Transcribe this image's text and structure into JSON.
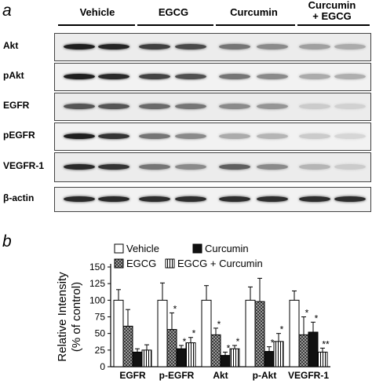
{
  "panel_a": {
    "letter": "a",
    "groups": [
      "Vehicle",
      "EGCG",
      "Curcumin",
      "Curcumin\n+ EGCG"
    ],
    "rows": [
      {
        "label": "Akt",
        "intensity": [
          0.95,
          0.92,
          0.8,
          0.75,
          0.55,
          0.45,
          0.35,
          0.3
        ]
      },
      {
        "label": "pAkt",
        "intensity": [
          0.95,
          0.9,
          0.78,
          0.72,
          0.55,
          0.45,
          0.3,
          0.28
        ]
      },
      {
        "label": "EGFR",
        "intensity": [
          0.7,
          0.7,
          0.6,
          0.55,
          0.45,
          0.4,
          0.15,
          0.12
        ]
      },
      {
        "label": "pEGFR",
        "intensity": [
          0.95,
          0.85,
          0.55,
          0.45,
          0.3,
          0.25,
          0.15,
          0.1
        ]
      },
      {
        "label": "VEGFR-1",
        "intensity": [
          0.9,
          0.85,
          0.55,
          0.45,
          0.65,
          0.45,
          0.25,
          0.15
        ]
      },
      {
        "label": "β-actin",
        "intensity": [
          0.9,
          0.9,
          0.88,
          0.88,
          0.88,
          0.88,
          0.88,
          0.88
        ]
      }
    ]
  },
  "panel_b": {
    "letter": "b",
    "legend": [
      "Vehicle",
      "Curcumin",
      "EGCG",
      "EGCG  +  Curcumin"
    ]
  },
  "chart_data": {
    "type": "bar",
    "categories": [
      "EGFR",
      "p-EGFR",
      "Akt",
      "p-Akt",
      "VEGFR-1"
    ],
    "series": [
      {
        "name": "Vehicle",
        "values": [
          100,
          100,
          100,
          100,
          100
        ],
        "errors": [
          16,
          26,
          22,
          20,
          14
        ]
      },
      {
        "name": "EGCG",
        "values": [
          61,
          56,
          48,
          98,
          48
        ],
        "errors": [
          25,
          25,
          10,
          35,
          27
        ]
      },
      {
        "name": "Curcumin",
        "values": [
          22,
          27,
          17,
          23,
          52
        ],
        "errors": [
          5,
          5,
          5,
          7,
          15
        ]
      },
      {
        "name": "EGCG  +  Curcumin",
        "values": [
          25,
          36,
          27,
          38,
          22
        ],
        "errors": [
          8,
          8,
          5,
          12,
          6
        ]
      }
    ],
    "significance": [
      [
        "",
        "",
        "",
        ""
      ],
      [
        "",
        "*",
        "*",
        "*"
      ],
      [
        "",
        "*",
        "*",
        "*"
      ],
      [
        "",
        "",
        "*",
        "*"
      ],
      [
        "",
        "*",
        "*",
        "**"
      ]
    ],
    "ylabel": "Relative Intensity\n(% of control)",
    "ylim": [
      0,
      150
    ],
    "yticks": [
      "0",
      "25",
      "50",
      "75",
      "100",
      "125",
      "150"
    ],
    "colors": {
      "Vehicle": "#ffffff",
      "EGCG": "#8c8c8c",
      "Curcumin": "#111111",
      "EGCG  +  Curcumin": "#ffffff"
    }
  }
}
